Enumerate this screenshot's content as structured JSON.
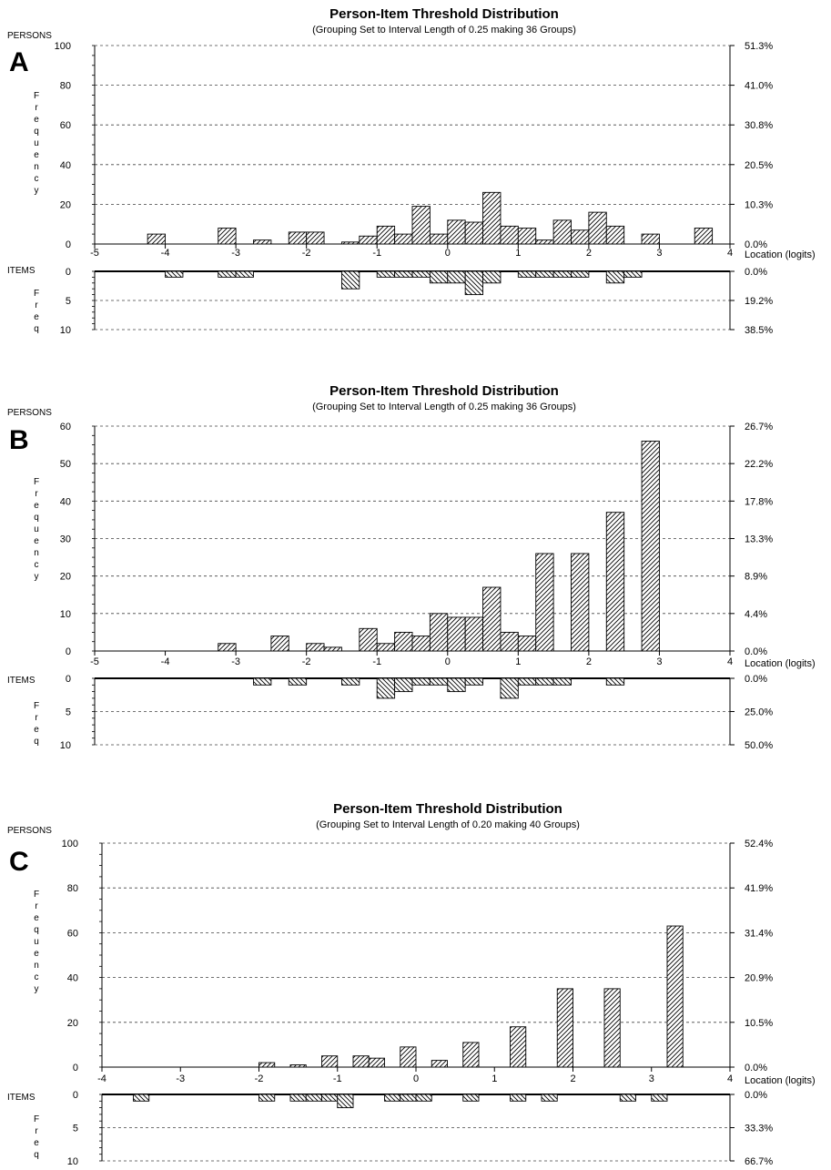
{
  "chart_data": [
    {
      "type": "bar",
      "panel": "A",
      "title": "Person-Item Threshold Distribution",
      "subtitle": "(Grouping Set to Interval Length of  0.25  making  36  Groups)",
      "persons_label": "PERSONS",
      "items_label": "ITEMS",
      "person_ylabel": "Frequency",
      "item_ylabel": "Freq",
      "xlabel": "Location (logits)",
      "x_range": [
        -5,
        4
      ],
      "x_ticks": [
        "-5",
        "-4",
        "-3",
        "-2",
        "-1",
        "0",
        "1",
        "2",
        "3",
        "4"
      ],
      "person_ylim": [
        0,
        100
      ],
      "person_yticks": [
        "100",
        "80",
        "60",
        "40",
        "20",
        "0"
      ],
      "person_pct_ticks": [
        "51.3%",
        "41.0%",
        "30.8%",
        "20.5%",
        "10.3%",
        "0.0%"
      ],
      "item_ylim": [
        0,
        10
      ],
      "item_yticks": [
        "0",
        "5",
        "10"
      ],
      "item_pct_ticks": [
        "0.0%",
        "19.2%",
        "38.5%"
      ],
      "bin_width": 0.25,
      "persons": [
        {
          "x": -4.125,
          "y": 5
        },
        {
          "x": -3.125,
          "y": 8
        },
        {
          "x": -2.625,
          "y": 2
        },
        {
          "x": -2.125,
          "y": 6
        },
        {
          "x": -1.875,
          "y": 6
        },
        {
          "x": -1.375,
          "y": 1
        },
        {
          "x": -1.125,
          "y": 4
        },
        {
          "x": -0.875,
          "y": 9
        },
        {
          "x": -0.625,
          "y": 5
        },
        {
          "x": -0.375,
          "y": 19
        },
        {
          "x": -0.125,
          "y": 5
        },
        {
          "x": 0.125,
          "y": 12
        },
        {
          "x": 0.375,
          "y": 11
        },
        {
          "x": 0.625,
          "y": 26
        },
        {
          "x": 0.875,
          "y": 9
        },
        {
          "x": 1.125,
          "y": 8
        },
        {
          "x": 1.375,
          "y": 2
        },
        {
          "x": 1.625,
          "y": 12
        },
        {
          "x": 1.875,
          "y": 7
        },
        {
          "x": 2.125,
          "y": 16
        },
        {
          "x": 2.375,
          "y": 9
        },
        {
          "x": 2.875,
          "y": 5
        },
        {
          "x": 3.625,
          "y": 8
        }
      ],
      "items": [
        {
          "x": -3.875,
          "y": 1
        },
        {
          "x": -3.125,
          "y": 1
        },
        {
          "x": -2.875,
          "y": 1
        },
        {
          "x": -1.375,
          "y": 3
        },
        {
          "x": -0.875,
          "y": 1
        },
        {
          "x": -0.625,
          "y": 1
        },
        {
          "x": -0.375,
          "y": 1
        },
        {
          "x": -0.125,
          "y": 2
        },
        {
          "x": 0.125,
          "y": 2
        },
        {
          "x": 0.375,
          "y": 4
        },
        {
          "x": 0.625,
          "y": 2
        },
        {
          "x": 1.125,
          "y": 1
        },
        {
          "x": 1.375,
          "y": 1
        },
        {
          "x": 1.625,
          "y": 1
        },
        {
          "x": 1.875,
          "y": 1
        },
        {
          "x": 2.375,
          "y": 2
        },
        {
          "x": 2.625,
          "y": 1
        }
      ]
    },
    {
      "type": "bar",
      "panel": "B",
      "title": "Person-Item Threshold Distribution",
      "subtitle": "(Grouping Set to Interval Length of  0.25  making  36  Groups)",
      "persons_label": "PERSONS",
      "items_label": "ITEMS",
      "person_ylabel": "Frequency",
      "item_ylabel": "Freq",
      "xlabel": "Location (logits)",
      "x_range": [
        -5,
        4
      ],
      "x_ticks": [
        "-5",
        "-4",
        "-3",
        "-2",
        "-1",
        "0",
        "1",
        "2",
        "3",
        "4"
      ],
      "person_ylim": [
        0,
        60
      ],
      "person_yticks": [
        "60",
        "50",
        "40",
        "30",
        "20",
        "10",
        "0"
      ],
      "person_pct_ticks": [
        "26.7%",
        "22.2%",
        "17.8%",
        "13.3%",
        "8.9%",
        "4.4%",
        "0.0%"
      ],
      "item_ylim": [
        0,
        10
      ],
      "item_yticks": [
        "0",
        "5",
        "10"
      ],
      "item_pct_ticks": [
        "0.0%",
        "25.0%",
        "50.0%"
      ],
      "bin_width": 0.25,
      "persons": [
        {
          "x": -3.125,
          "y": 2
        },
        {
          "x": -2.375,
          "y": 4
        },
        {
          "x": -1.875,
          "y": 2
        },
        {
          "x": -1.625,
          "y": 1
        },
        {
          "x": -1.125,
          "y": 6
        },
        {
          "x": -0.875,
          "y": 2
        },
        {
          "x": -0.625,
          "y": 5
        },
        {
          "x": -0.375,
          "y": 4
        },
        {
          "x": -0.125,
          "y": 10
        },
        {
          "x": 0.125,
          "y": 9
        },
        {
          "x": 0.375,
          "y": 9
        },
        {
          "x": 0.625,
          "y": 17
        },
        {
          "x": 0.875,
          "y": 5
        },
        {
          "x": 1.125,
          "y": 4
        },
        {
          "x": 1.375,
          "y": 26
        },
        {
          "x": 1.875,
          "y": 26
        },
        {
          "x": 2.375,
          "y": 37
        },
        {
          "x": 2.875,
          "y": 56
        }
      ],
      "items": [
        {
          "x": -2.625,
          "y": 1
        },
        {
          "x": -2.125,
          "y": 1
        },
        {
          "x": -1.375,
          "y": 1
        },
        {
          "x": -0.875,
          "y": 3
        },
        {
          "x": -0.625,
          "y": 2
        },
        {
          "x": -0.375,
          "y": 1
        },
        {
          "x": -0.125,
          "y": 1
        },
        {
          "x": 0.125,
          "y": 2
        },
        {
          "x": 0.375,
          "y": 1
        },
        {
          "x": 0.875,
          "y": 3
        },
        {
          "x": 1.125,
          "y": 1
        },
        {
          "x": 1.375,
          "y": 1
        },
        {
          "x": 1.625,
          "y": 1
        },
        {
          "x": 2.375,
          "y": 1
        }
      ]
    },
    {
      "type": "bar",
      "panel": "C",
      "title": "Person-Item Threshold Distribution",
      "subtitle": "(Grouping Set to Interval Length of  0.20  making  40  Groups)",
      "persons_label": "PERSONS",
      "items_label": "ITEMS",
      "person_ylabel": "Frequency",
      "item_ylabel": "Freq",
      "xlabel": "Location (logits)",
      "x_range": [
        -4,
        4
      ],
      "x_ticks": [
        "-4",
        "-3",
        "-2",
        "-1",
        "0",
        "1",
        "2",
        "3",
        "4"
      ],
      "person_ylim": [
        0,
        100
      ],
      "person_yticks": [
        "100",
        "80",
        "60",
        "40",
        "20",
        "0"
      ],
      "person_pct_ticks": [
        "52.4%",
        "41.9%",
        "31.4%",
        "20.9%",
        "10.5%",
        "0.0%"
      ],
      "item_ylim": [
        0,
        10
      ],
      "item_yticks": [
        "0",
        "5",
        "10"
      ],
      "item_pct_ticks": [
        "0.0%",
        "33.3%",
        "66.7%"
      ],
      "bin_width": 0.2,
      "persons": [
        {
          "x": -1.9,
          "y": 2
        },
        {
          "x": -1.5,
          "y": 1
        },
        {
          "x": -1.1,
          "y": 5
        },
        {
          "x": -0.7,
          "y": 5
        },
        {
          "x": -0.5,
          "y": 4
        },
        {
          "x": -0.1,
          "y": 9
        },
        {
          "x": 0.3,
          "y": 3
        },
        {
          "x": 0.7,
          "y": 11
        },
        {
          "x": 1.3,
          "y": 18
        },
        {
          "x": 1.9,
          "y": 35
        },
        {
          "x": 2.5,
          "y": 35
        },
        {
          "x": 3.3,
          "y": 63
        }
      ],
      "items": [
        {
          "x": -3.5,
          "y": 1
        },
        {
          "x": -1.9,
          "y": 1
        },
        {
          "x": -1.5,
          "y": 1
        },
        {
          "x": -1.3,
          "y": 1
        },
        {
          "x": -1.1,
          "y": 1
        },
        {
          "x": -0.9,
          "y": 2
        },
        {
          "x": -0.3,
          "y": 1
        },
        {
          "x": -0.1,
          "y": 1
        },
        {
          "x": 0.1,
          "y": 1
        },
        {
          "x": 0.7,
          "y": 1
        },
        {
          "x": 1.3,
          "y": 1
        },
        {
          "x": 1.7,
          "y": 1
        },
        {
          "x": 2.7,
          "y": 1
        },
        {
          "x": 3.1,
          "y": 1
        }
      ]
    }
  ]
}
